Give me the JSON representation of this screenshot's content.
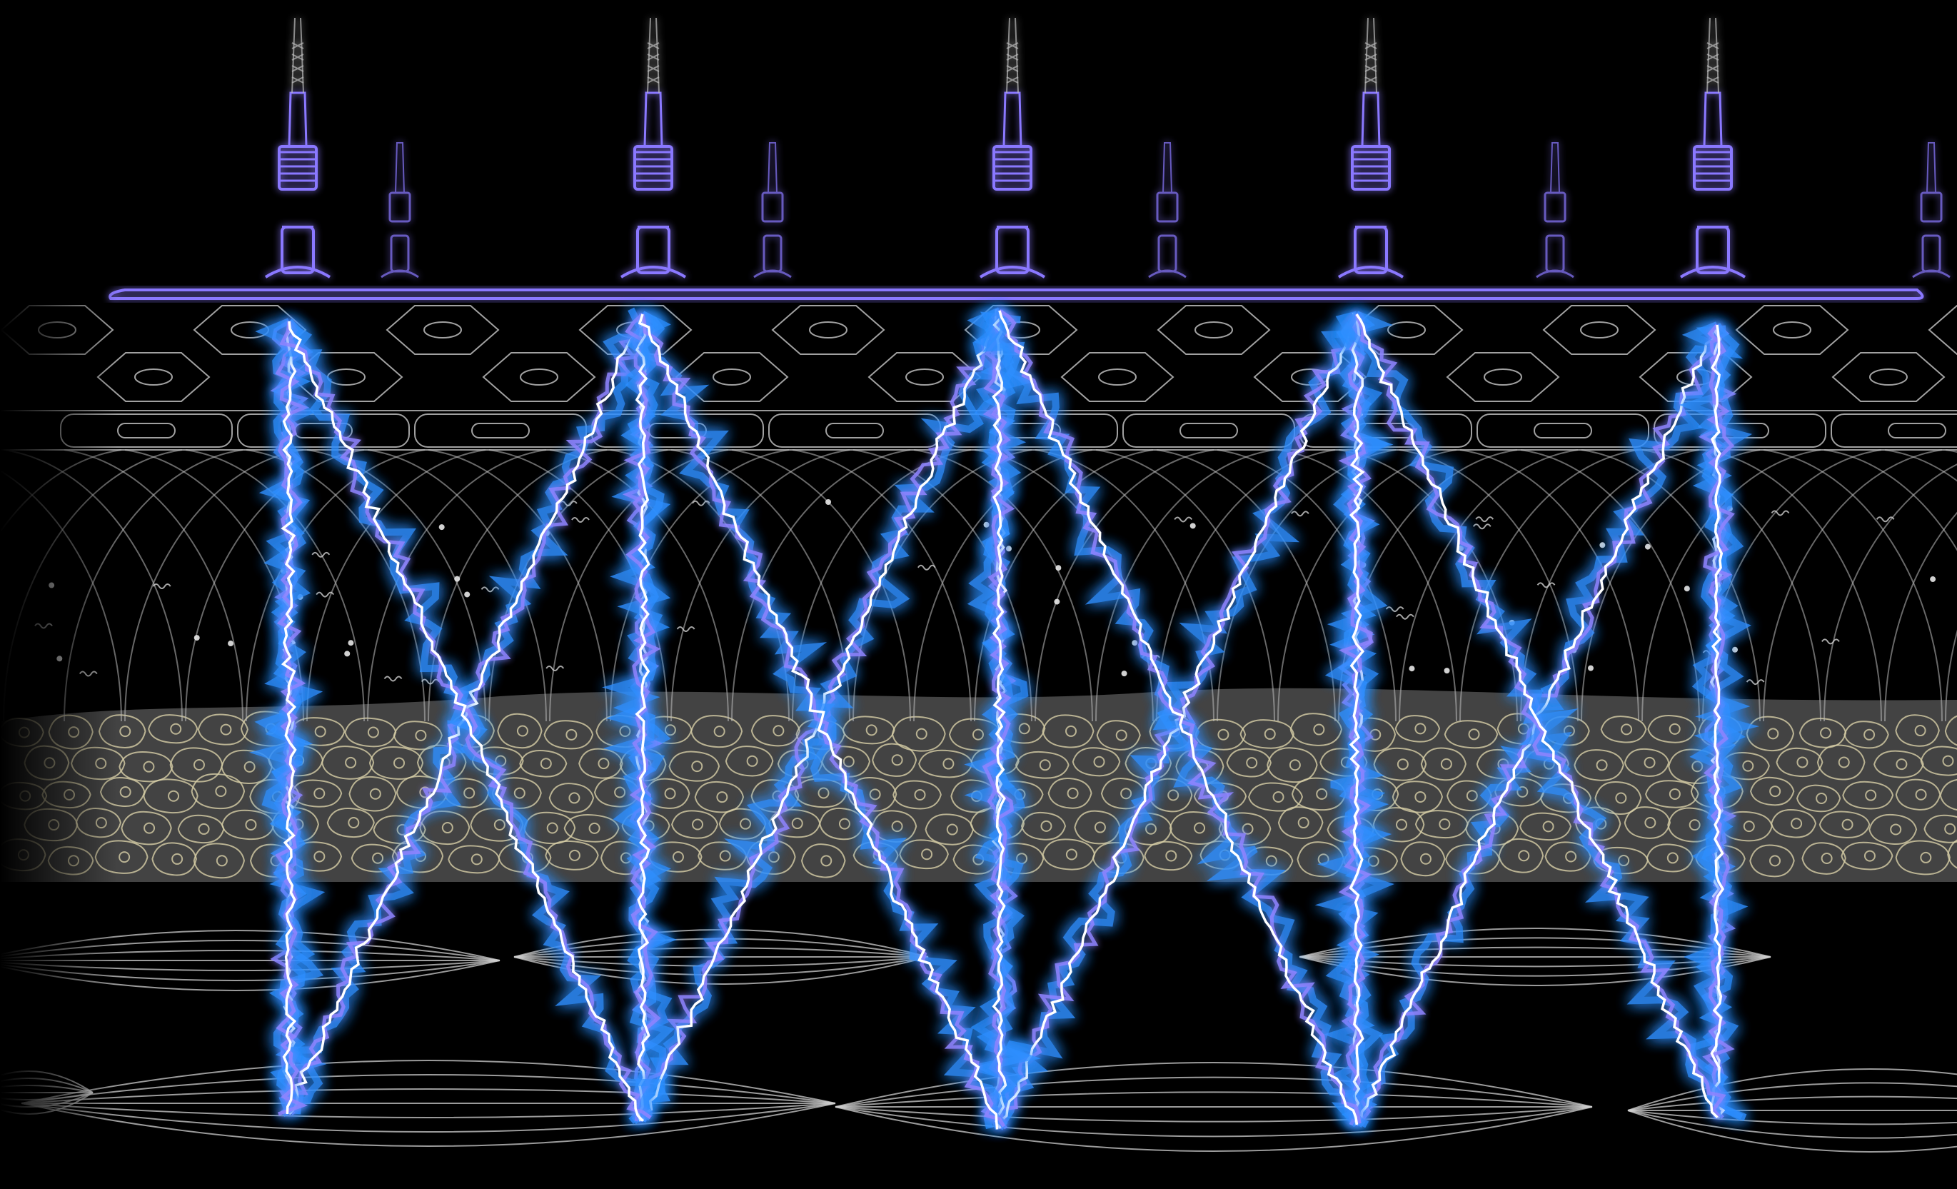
{
  "figure": {
    "colors": {
      "background": "#000000",
      "electrode": "#8a78ff",
      "electrode_glow": "#4a3cff",
      "energy_core": "#ffffff",
      "energy_glow": "#2f8fff",
      "energy_glow_2": "#8f84ff",
      "cell_line": "#bdbdbd",
      "dermal_band": "#4a4a4a",
      "dermal_cell": "#d8cfa8",
      "muscle_line": "#cfcfcf"
    },
    "layers": [
      "electrode-array",
      "epidermis-hexagonal-cells",
      "basal-layer",
      "dermis-fibers",
      "subcutaneous-cells",
      "muscle-fibers"
    ],
    "electrode_pairs": 5,
    "energy_path": "zigzag"
  }
}
